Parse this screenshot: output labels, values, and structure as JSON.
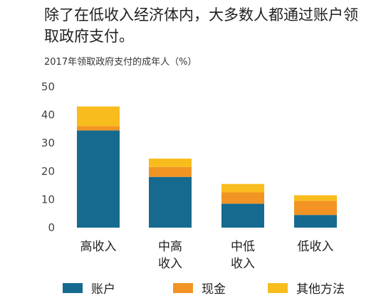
{
  "title": "除了在低收入经济体内，大多数人都通过账户领取政府支付。",
  "subtitle": "2017年领取政府支付的成年人（%）",
  "chart_data": {
    "type": "bar",
    "stacked": true,
    "title": "除了在低收入经济体内，大多数人都通过账户领取政府支付。",
    "subtitle": "2017年领取政府支付的成年人（%）",
    "categories": [
      [
        "高收入"
      ],
      [
        "中高",
        "收入"
      ],
      [
        "中低",
        "收入"
      ],
      [
        "低收入"
      ]
    ],
    "series": [
      {
        "name": "账户",
        "color": "#166a8f",
        "values": [
          34.5,
          18,
          8.5,
          4.5
        ]
      },
      {
        "name": "现金",
        "color": "#f29423",
        "values": [
          1.5,
          3.5,
          4,
          5
        ]
      },
      {
        "name": "其他方法",
        "color": "#f8bc1d",
        "values": [
          7,
          3,
          3,
          2
        ]
      }
    ],
    "ylim": [
      0,
      50
    ],
    "yticks": [
      0,
      10,
      20,
      30,
      40,
      50
    ],
    "grid": false,
    "legend": "bottom"
  }
}
